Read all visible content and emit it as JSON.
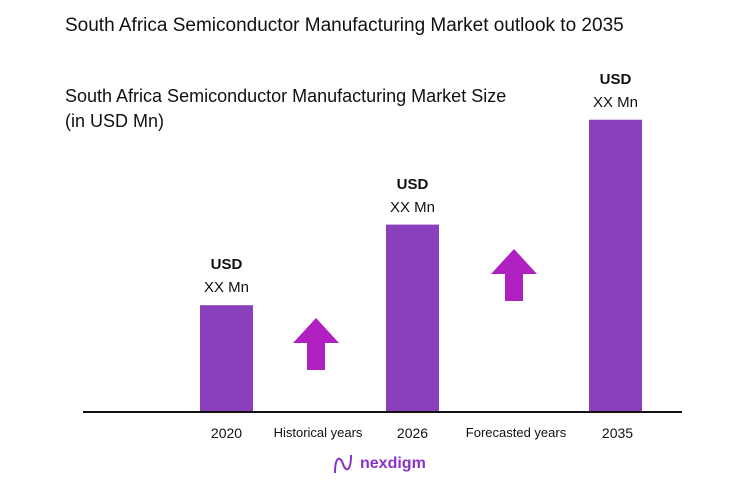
{
  "title": "South Africa Semiconductor Manufacturing Market outlook to 2035",
  "subtitle": "South Africa Semiconductor Manufacturing Market Size (in USD Mn)",
  "logo": "nexdigm",
  "chart_data": {
    "type": "bar",
    "title": "South Africa Semiconductor Manufacturing Market Size (in USD Mn)",
    "categories": [
      "2020",
      "2026",
      "2035"
    ],
    "values": [
      110,
      193,
      301
    ],
    "value_note": "relative bar heights; actual values not shown",
    "data_labels": [
      {
        "line1": "USD",
        "line2": "XX Mn"
      },
      {
        "line1": "USD",
        "line2": "XX Mn"
      },
      {
        "line1": "USD",
        "line2": "XX Mn"
      }
    ],
    "annotations": [
      "Historical years",
      "Forecasted years"
    ],
    "bar_color": "#8a3fbd",
    "arrow_color": "#b01fbf",
    "ylim": [
      0,
      310
    ]
  }
}
